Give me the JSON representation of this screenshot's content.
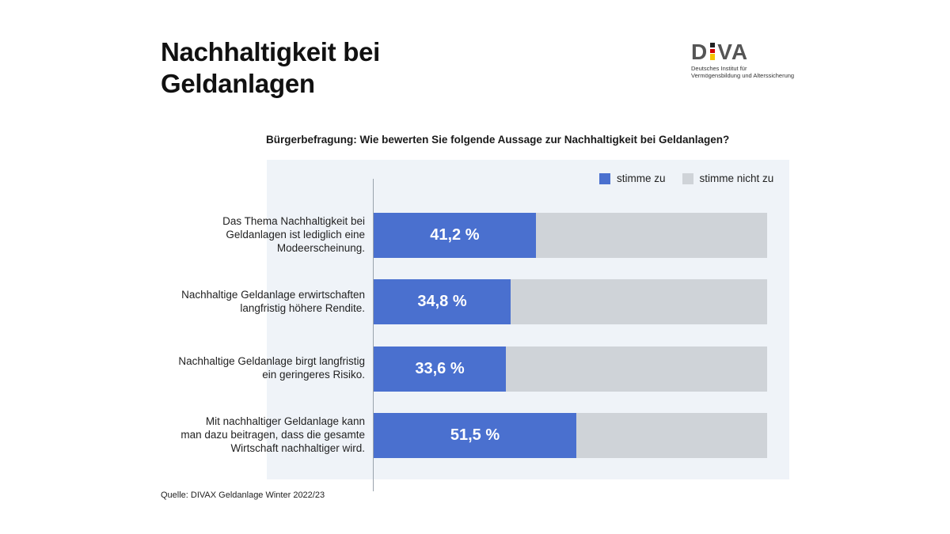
{
  "title": [
    "Nachhaltigkeit bei",
    "Geldanlagen"
  ],
  "logo": {
    "mark": "DIVA",
    "subtitle": [
      "Deutsches Institut für",
      "Vermögensbildung und Alterssicherung"
    ]
  },
  "source": "Quelle: DIVAX Geldanlage Winter 2022/23",
  "colors": {
    "agree": "#4a70cf",
    "disagree": "#cfd3d8",
    "panel": "#eff3f8"
  },
  "chart_data": {
    "type": "bar",
    "orientation": "horizontal",
    "stacked": true,
    "title": "Bürgerbefragung: Wie bewerten Sie folgende Aussage zur Nachhaltigkeit bei Geldanlagen?",
    "categories": [
      [
        "Das Thema Nachhaltigkeit bei",
        "Geldanlagen ist lediglich eine",
        "Modeerscheinung."
      ],
      [
        "Nachhaltige Geldanlage erwirtschaften",
        "langfristig höhere Rendite."
      ],
      [
        "Nachhaltige Geldanlage birgt langfristig",
        "ein geringeres Risiko."
      ],
      [
        "Mit nachhaltiger Geldanlage kann",
        "man dazu beitragen, dass die gesamte",
        "Wirtschaft nachhaltiger wird."
      ]
    ],
    "series": [
      {
        "name": "stimme zu",
        "values": [
          41.2,
          34.8,
          33.6,
          51.5
        ]
      },
      {
        "name": "stimme nicht zu",
        "values": [
          58.8,
          65.2,
          66.4,
          48.5
        ]
      }
    ],
    "value_labels": [
      "41,2 %",
      "34,8 %",
      "33,6 %",
      "51,5 %"
    ],
    "xlim": [
      0,
      100
    ],
    "legend_position": "top-right",
    "grid": false
  }
}
